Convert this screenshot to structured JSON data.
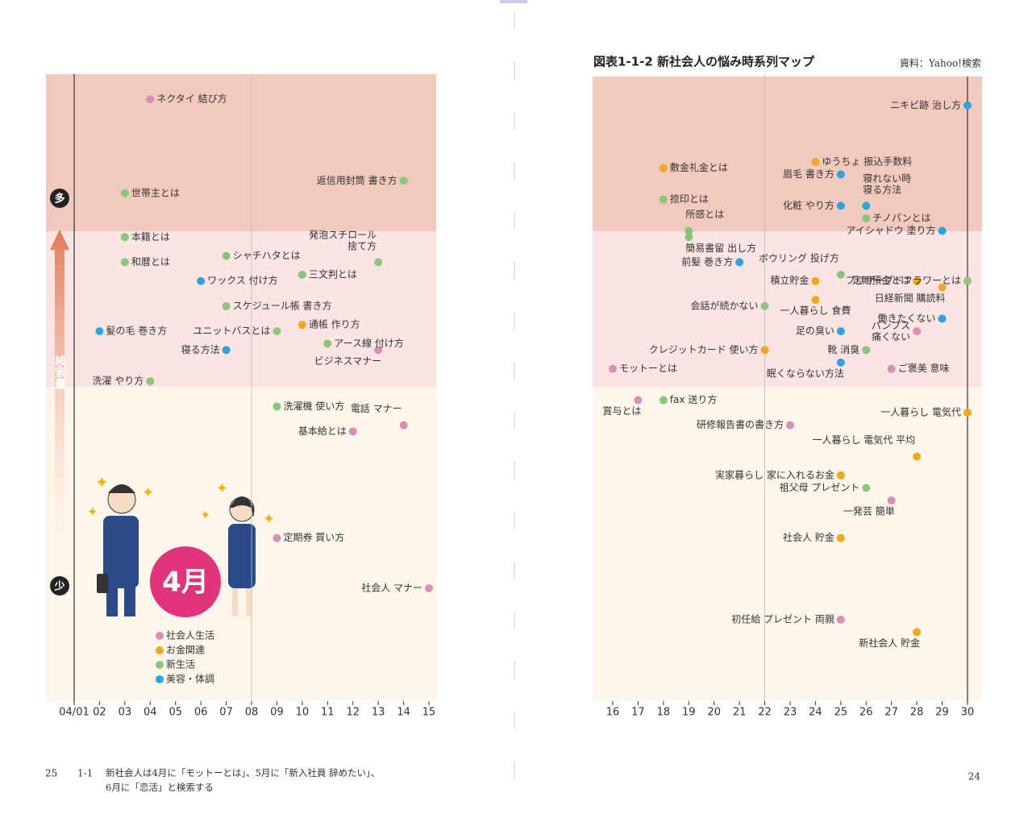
{
  "page": {
    "left_page_number": "25",
    "section": "1-1",
    "caption": [
      "新社会人は4月に「モットーとは」、5月に「新入社員 辞めたい」、",
      "6月に「恋活」と検索する"
    ],
    "right_page_number": "24"
  },
  "chart_data": {
    "type": "scatter",
    "title": "図表1-1-2 新社会人の悩み時系列マップ",
    "source": "資料：Yahoo!検索",
    "y_label": "検索量",
    "y_high_label": "多",
    "y_low_label": "少",
    "badge": "4月",
    "xlim": [
      1,
      30
    ],
    "ylim": [
      0,
      100
    ],
    "xticks": [
      {
        "value": 1,
        "label": "04/01"
      },
      {
        "value": 2,
        "label": "02"
      },
      {
        "value": 3,
        "label": "03"
      },
      {
        "value": 4,
        "label": "04"
      },
      {
        "value": 5,
        "label": "05"
      },
      {
        "value": 6,
        "label": "06"
      },
      {
        "value": 7,
        "label": "07"
      },
      {
        "value": 8,
        "label": "08"
      },
      {
        "value": 9,
        "label": "09"
      },
      10,
      11,
      12,
      13,
      14,
      15,
      16,
      17,
      18,
      19,
      20,
      21,
      22,
      23,
      24,
      25,
      26,
      27,
      28,
      29,
      30
    ],
    "series": [
      {
        "name": "社会人生活",
        "color": "#d98fb8",
        "x": [
          4,
          13,
          14,
          12,
          9,
          15,
          28,
          27,
          16,
          17,
          23,
          27,
          25
        ],
        "y": [
          96,
          56,
          44,
          43,
          26,
          18,
          59,
          53,
          53,
          48,
          44,
          32,
          13
        ],
        "labels": [
          "ネクタイ 結び方",
          "ビジネスマナー",
          "電話 マナー",
          "基本給とは",
          "定期券 買い方",
          "社会人 マナー",
          "パンプス\n痛くない",
          "ご褒美 意味",
          "モットーとは",
          "賞与とは",
          "研修報告書の書き方",
          "一発芸 簡単",
          "初任給 プレゼント 両親"
        ]
      },
      {
        "name": "お金関連",
        "color": "#f0a81e",
        "x": [
          10,
          24,
          18,
          24,
          28,
          24,
          29,
          22,
          30,
          28,
          25,
          25,
          28
        ],
        "y": [
          60,
          86,
          85,
          67,
          67,
          64,
          66,
          56,
          46,
          39,
          36,
          26,
          11
        ],
        "labels": [
          "通帳 作り方",
          "ゆうちょ 振込手数料",
          "敷金礼金とは",
          "積立貯金",
          "定期預金とは",
          "一人暮らし 食費",
          "日経新聞 購読料",
          "クレジットカード 使い方",
          "一人暮らし 電気代",
          "一人暮らし 電気代 平均",
          "実家暮らし 家に入れるお金",
          "社会人 貯金",
          "新社会人 貯金"
        ]
      },
      {
        "name": "新生活",
        "color": "#8cc47e",
        "x": [
          14,
          3,
          3,
          3,
          7,
          13,
          10,
          7,
          9,
          11,
          4,
          9,
          18,
          19,
          26,
          19,
          25,
          30,
          22,
          26,
          18,
          26
        ],
        "y": [
          83,
          81,
          74,
          70,
          71,
          70,
          68,
          63,
          59,
          57,
          51,
          47,
          80,
          75,
          77,
          74,
          68,
          67,
          63,
          56,
          48,
          34
        ],
        "labels": [
          "返信用封筒 書き方",
          "世帯主とは",
          "本籍とは",
          "和暦とは",
          "シャチハタとは",
          "発泡スチロール\n捨て方",
          "三文判とは",
          "スケジュール帳 書き方",
          "ユニットバスとは",
          "アース線 付け方",
          "洗濯 やり方",
          "洗濯機 使い方",
          "捺印とは",
          "所感とは",
          "チノパンとは",
          "簡易書留 出し方",
          "ボウリング 投げ方",
          "プリザーブドフラワーとは",
          "会話が続かない",
          "靴 消臭",
          "fax 送り方",
          "祖父母 プレゼント"
        ]
      },
      {
        "name": "美容・体調",
        "color": "#2fa3e0",
        "x": [
          6,
          2,
          7,
          30,
          25,
          26,
          25,
          29,
          21,
          29,
          25,
          25
        ],
        "y": [
          67,
          59,
          56,
          95,
          84,
          79,
          79,
          75,
          70,
          61,
          59,
          54
        ],
        "labels": [
          "ワックス 付け方",
          "髪の毛 巻き方",
          "寝る方法",
          "ニキビ跡 治し方",
          "眉毛 書き方",
          "寝れない時\n寝る方法",
          "化粧 やり方",
          "アイシャドウ 塗り方",
          "前髪 巻き方",
          "働きたくない",
          "足の臭い",
          "眠くならない方法"
        ]
      }
    ]
  }
}
